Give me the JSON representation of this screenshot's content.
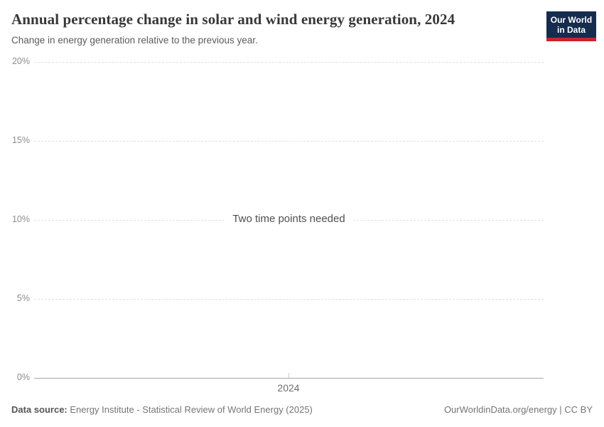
{
  "header": {
    "title": "Annual percentage change in solar and wind energy generation, 2024",
    "subtitle": "Change in energy generation relative to the previous year.",
    "logo": {
      "line1": "Our World",
      "line2": "in Data",
      "bg_color": "#152c4e",
      "accent_color": "#c7252d",
      "text_color": "#ffffff"
    }
  },
  "plot": {
    "message": "Two time points needed",
    "x_tick_label": "2024"
  },
  "footer": {
    "data_source_label": "Data source:",
    "data_source_value": " Energy Institute - Statistical Review of World Energy (2025)",
    "citation": "OurWorldinData.org/energy | CC BY"
  },
  "colors": {
    "gridline": "#e0e0e0",
    "axis_line": "#a6a6a6",
    "tick_label": "#8d8d8d",
    "title": "#383838"
  },
  "chart_data": {
    "type": "line",
    "title": "Annual percentage change in solar and wind energy generation, 2024",
    "subtitle": "Change in energy generation relative to the previous year.",
    "xlabel": "",
    "ylabel": "",
    "x": [
      "2024"
    ],
    "series": [],
    "empty_state_message": "Two time points needed",
    "ylim": [
      0,
      20
    ],
    "yticks": [
      {
        "label": "20%",
        "value": 20
      },
      {
        "label": "15%",
        "value": 15
      },
      {
        "label": "10%",
        "value": 10
      },
      {
        "label": "5%",
        "value": 5
      },
      {
        "label": "0%",
        "value": 0
      }
    ],
    "grid": "horizontal-dashed",
    "legend": "none"
  }
}
